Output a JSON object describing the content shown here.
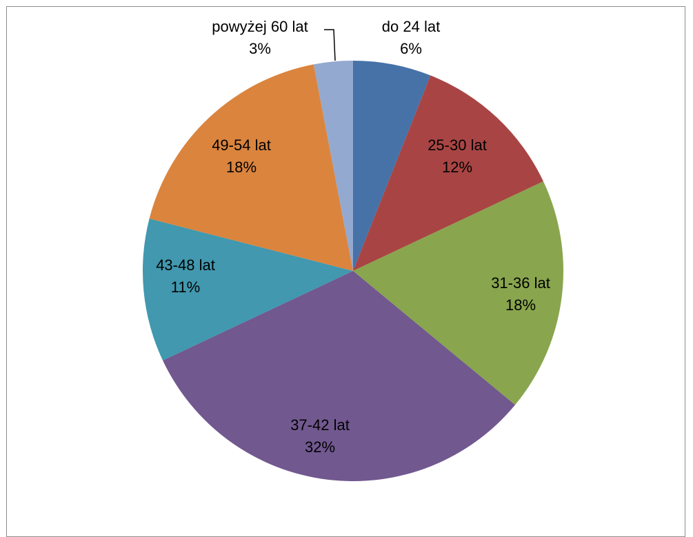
{
  "chart_data": {
    "type": "pie",
    "title": "",
    "categories": [
      "do 24 lat",
      "25-30 lat",
      "31-36 lat",
      "37-42 lat",
      "43-48 lat",
      "49-54 lat",
      "powyżej 60 lat"
    ],
    "values": [
      6,
      12,
      18,
      32,
      11,
      18,
      3
    ],
    "value_labels": [
      "6%",
      "12%",
      "18%",
      "32%",
      "11%",
      "18%",
      "3%"
    ],
    "colors": [
      "#4672a8",
      "#a84544",
      "#89a54e",
      "#71588f",
      "#4198af",
      "#db843d",
      "#93a9cf"
    ],
    "start": "12 o'clock",
    "direction": "clockwise",
    "legend": "none",
    "labels": "category and percentage on or beside each slice"
  }
}
